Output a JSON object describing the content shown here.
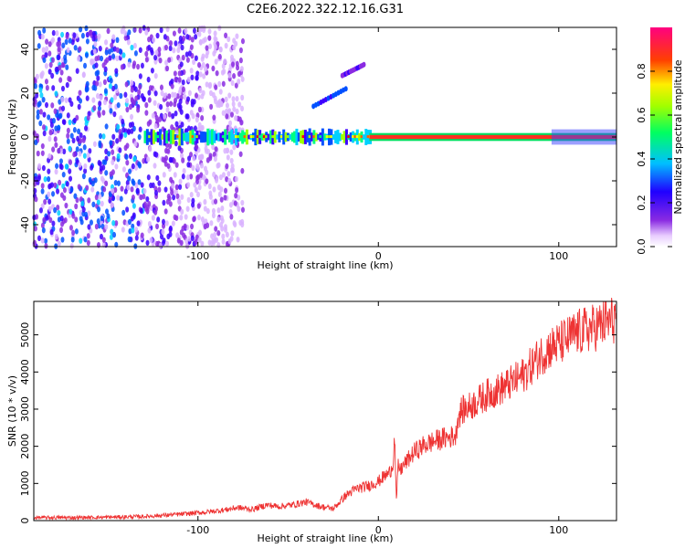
{
  "title": "C2E6.2022.322.12.16.G31",
  "chart_data": [
    {
      "type": "heatmap",
      "xlabel": "Height of straight line (km)",
      "ylabel": "Frequency (Hz)",
      "xlim": [
        -191,
        132
      ],
      "ylim": [
        -50,
        50
      ],
      "xticks": [
        -100,
        0,
        100
      ],
      "yticks": [
        -40,
        -20,
        0,
        20,
        40
      ],
      "colorbar": {
        "label": "Normalized spectral amplitude",
        "range": [
          0,
          1
        ],
        "ticks": [
          0.0,
          0.2,
          0.4,
          0.6,
          0.8
        ]
      },
      "colormap": [
        "#ffffff",
        "#d9b3ff",
        "#8a2be2",
        "#3c00ff",
        "#0050ff",
        "#00d0ff",
        "#00ff80",
        "#a0ff00",
        "#ffff00",
        "#ff6000",
        "#ff0000",
        "#ff0080"
      ],
      "features": [
        {
          "kind": "noise",
          "x_range": [
            -191,
            -75
          ],
          "freq_range": [
            -50,
            50
          ],
          "amplitude": 0.35
        },
        {
          "kind": "band",
          "x_range": [
            -130,
            -5
          ],
          "freq": 0,
          "amplitude": 0.55
        },
        {
          "kind": "line",
          "x_range": [
            -5,
            132
          ],
          "freq": 0,
          "amplitude": 0.9
        },
        {
          "kind": "streak",
          "x_range": [
            -36,
            -18
          ],
          "freq_range": [
            14,
            22
          ],
          "amplitude": 0.3
        },
        {
          "kind": "streak",
          "x_range": [
            -20,
            -8
          ],
          "freq_range": [
            28,
            33
          ],
          "amplitude": 0.15
        }
      ]
    },
    {
      "type": "line",
      "xlabel": "Height of straight line (km)",
      "ylabel": "SNR (10 * v/v)",
      "xlim": [
        -191,
        132
      ],
      "ylim": [
        0,
        5900
      ],
      "xticks": [
        -100,
        0,
        100
      ],
      "yticks": [
        0,
        1000,
        2000,
        3000,
        4000,
        5000
      ],
      "color": "#ee3333",
      "series": [
        {
          "x": [
            -191,
            -170,
            -150,
            -130,
            -110,
            -95,
            -85,
            -78,
            -70,
            -62,
            -55,
            -48,
            -40,
            -32,
            -25,
            -18,
            -12,
            -6,
            0,
            3,
            6,
            8,
            9,
            10,
            11,
            12,
            15,
            20,
            25,
            30,
            35,
            40,
            43,
            44,
            46,
            50,
            60,
            70,
            80,
            90,
            95,
            100,
            110,
            120,
            130,
            132
          ],
          "y": [
            80,
            80,
            90,
            110,
            170,
            230,
            290,
            350,
            300,
            420,
            380,
            420,
            500,
            380,
            320,
            680,
            860,
            930,
            1050,
            1180,
            1280,
            1500,
            2300,
            500,
            1500,
            1350,
            1550,
            1850,
            2020,
            2120,
            2200,
            2250,
            2300,
            2800,
            2950,
            3050,
            3380,
            3600,
            3900,
            4450,
            4650,
            4750,
            5050,
            5200,
            5400,
            5500
          ]
        }
      ]
    }
  ]
}
